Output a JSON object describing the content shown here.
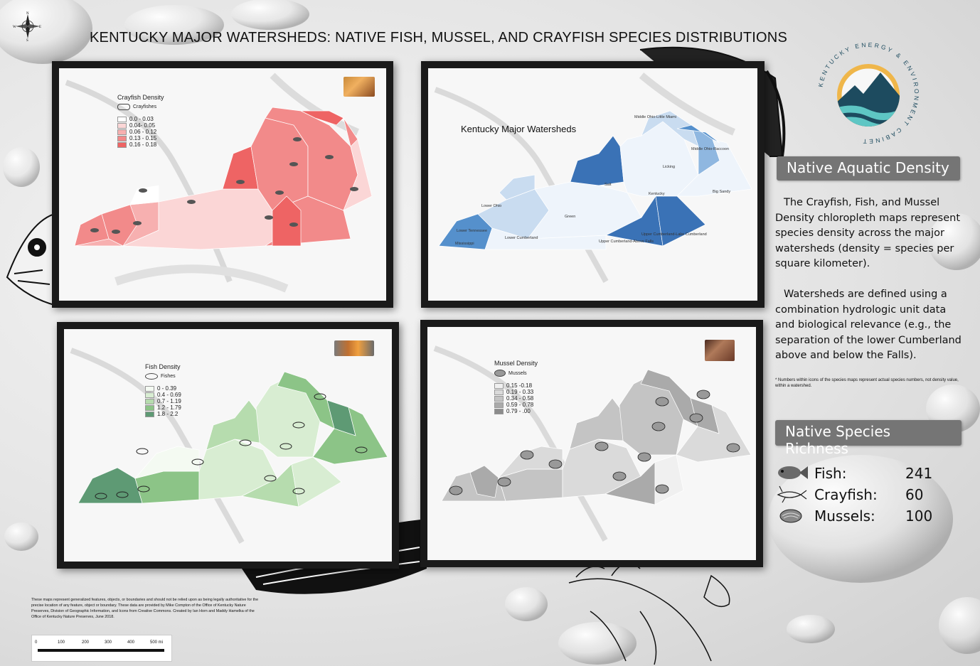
{
  "title": "KENTUCKY MAJOR WATERSHEDS: NATIVE FISH, MUSSEL, AND CRAYFISH SPECIES DISTRIBUTIONS",
  "compass": {
    "n": "N",
    "s": "S",
    "e": "E",
    "w": "W"
  },
  "logo": {
    "text": "KENTUCKY ENERGY & ENVIRONMENT CABINET"
  },
  "colors": {
    "crayfish_classes": [
      "#ffffff",
      "#fbd6d6",
      "#f7b0b0",
      "#f28a8a",
      "#ee6464"
    ],
    "watershed_blue": [
      "#eef4fb",
      "#c9dcf0",
      "#8fb7e0",
      "#5590cc",
      "#3a72b6"
    ],
    "fish_classes": [
      "#f4faf2",
      "#d8edd2",
      "#b6dcae",
      "#8cc487",
      "#5e9a74"
    ],
    "mussel_classes": [
      "#f0f0f0",
      "#dadada",
      "#c4c4c4",
      "#aaaaaa",
      "#8c8c8c"
    ],
    "side_header_bg": "#757575"
  },
  "maps": {
    "crayfish": {
      "legend_title": "Crayfish Density",
      "icon_label": "Crayfishes",
      "classes": [
        "0.0 - 0.03",
        "0.04- 0.05",
        "0.06 - 0.12",
        "0.13 - 0.15",
        "0.16 - 0.18"
      ],
      "icon_name": "crayfish-icon"
    },
    "watersheds": {
      "heading": "Kentucky Major Watersheds",
      "labels": [
        "Middle Ohio-Little Miami",
        "Licking",
        "Middle Ohio-Raccoon",
        "Kentucky",
        "Big Sandy",
        "Salt",
        "Green",
        "Lower Ohio",
        "Lower Cumberland",
        "Lower Tennessee",
        "Mississippi",
        "Upper Cumberland-Lake Cumberland",
        "Upper Cumberland-Above Falls"
      ]
    },
    "fish": {
      "legend_title": "Fish Density",
      "icon_label": "Fishes",
      "classes": [
        "0 - 0.39",
        "0.4 - 0.69",
        "0.7 - 1.19",
        "1.2 - 1.79",
        "1.8 - 2.2"
      ],
      "icon_name": "fish-icon"
    },
    "mussel": {
      "legend_title": "Mussel Density",
      "icon_label": "Mussels",
      "classes": [
        "0.15 -0.18",
        "0.19 - 0.33",
        "0.34 - 0.58",
        "0.59 - 0.78",
        "0.79 - .00"
      ],
      "icon_name": "mussel-icon"
    }
  },
  "native_aquatic_density": {
    "header": "Native Aquatic Density",
    "paragraph1": "The Crayfish, Fish, and Mussel Density chloropleth maps represent species density across the major watersheds (density = species per square kilometer).",
    "paragraph2": "Watersheds are defined using a combination hydrologic unit data and biological relevance (e.g., the separation of the lower Cumberland above and below the Falls).",
    "footnote": "* Numbers within icons of the species maps represent actual species numbers, not density value, within a watershed."
  },
  "native_species_richness": {
    "header": "Native Species Richness",
    "rows": [
      {
        "label": "Fish:",
        "value": "241",
        "icon": "fish-icon"
      },
      {
        "label": "Crayfish:",
        "value": "60",
        "icon": "crayfish-icon"
      },
      {
        "label": "Mussels:",
        "value": "100",
        "icon": "mussel-icon"
      }
    ]
  },
  "disclaimer": "These maps represent generalized features, objects, or boundaries and should not be relied upon as being legally authoritative for the precise location of any feature, object or boundary. These data are provided by Mike Compton of the Office of Kentucky Nature Preserves, Division of Geographic Information, and Icons from Creative Commons. Created by Ian Horn and Maddy Hamelka of the Office of Kentucky Nature Preserves, June 2018.",
  "scale_bar": {
    "ticks": [
      "0",
      "100",
      "200",
      "300",
      "400",
      "500 mi"
    ]
  }
}
